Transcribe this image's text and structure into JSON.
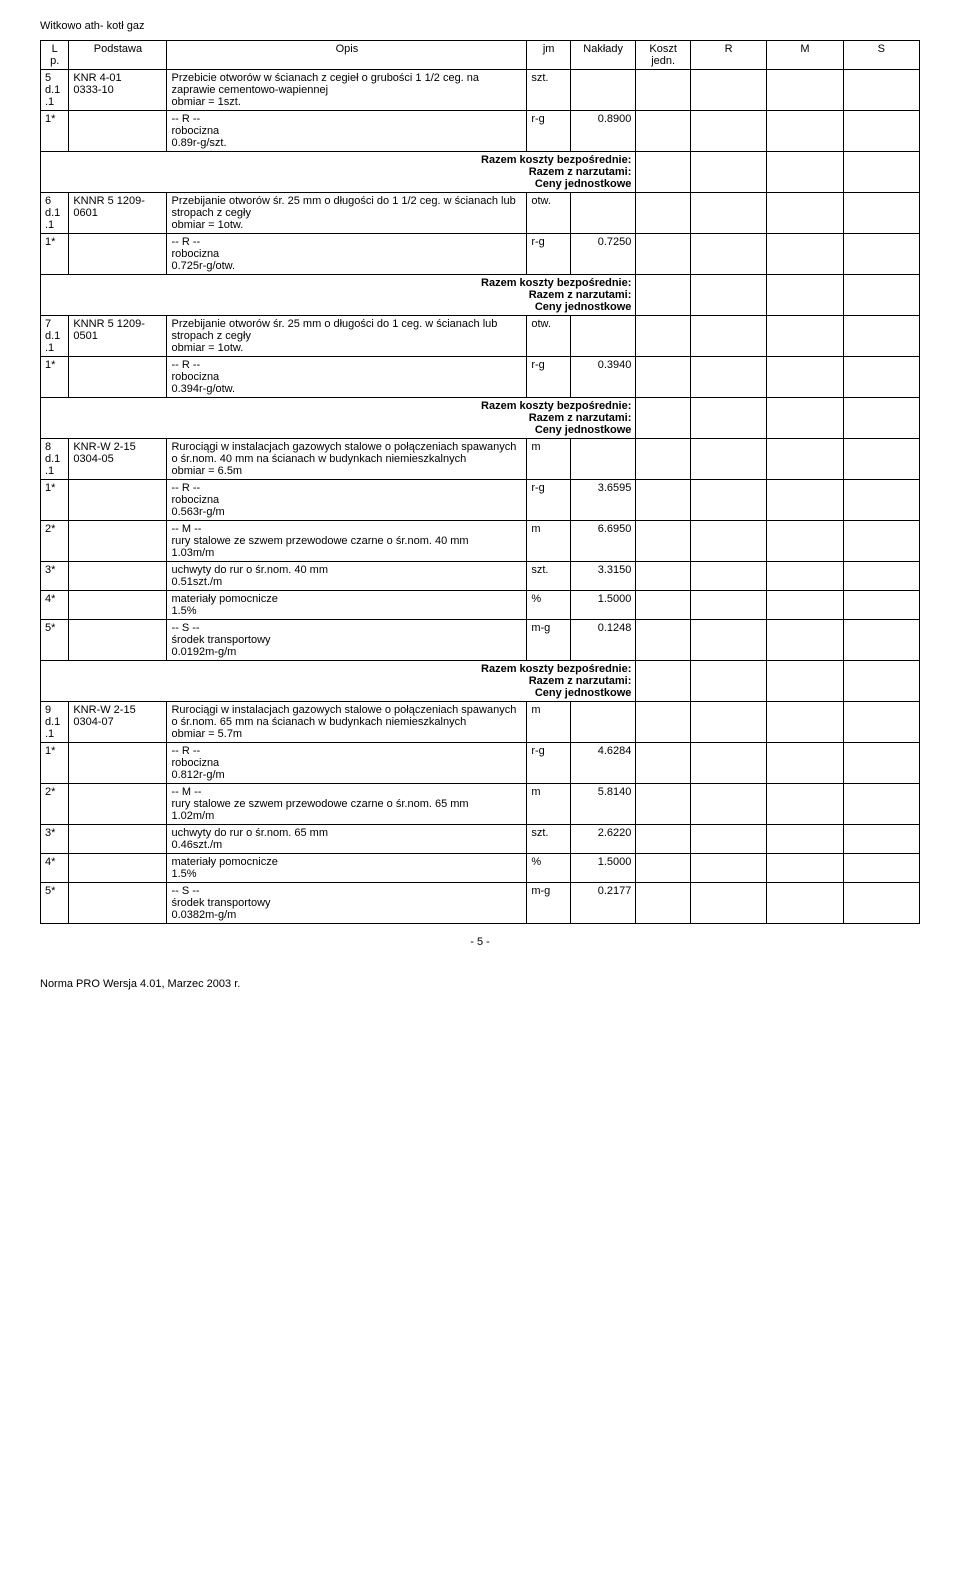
{
  "doc_title": "Witkowo ath- kotł gaz",
  "headers": {
    "lp": "L\np.",
    "podstawa": "Podstawa",
    "opis": "Opis",
    "jm": "jm",
    "naklady": "Nakłady",
    "koszt": "Koszt\njedn.",
    "r": "R",
    "m": "M",
    "s": "S"
  },
  "labels": {
    "rkb": "Razem koszty bezpośrednie:",
    "rzn": "Razem z narzutami:",
    "cj": "Ceny jednostkowe",
    "r_prefix": "-- R --",
    "m_prefix": "-- M --",
    "s_prefix": "-- S --"
  },
  "rows": [
    {
      "lp": "5\nd.1\n.1",
      "podstawa": "KNR 4-01\n0333-10",
      "opis": "Przebicie otworów w ścianach z cegieł o grubości 1 1/2 ceg. na zaprawie cementowo-wapiennej\nobmiar = 1szt.",
      "jm": "szt.",
      "sub": [
        {
          "type": "R",
          "lp": "1*",
          "opis": "robocizna\n0.89r-g/szt.",
          "jm": "r-g",
          "nak": "0.8900"
        }
      ]
    },
    {
      "lp": "6\nd.1\n.1",
      "podstawa": "KNNR 5 1209-\n0601",
      "opis": "Przebijanie otworów śr. 25 mm o długości do 1 1/2 ceg. w ścianach lub stropach z cegły\nobmiar = 1otw.",
      "jm": "otw.",
      "sub": [
        {
          "type": "R",
          "lp": "1*",
          "opis": "robocizna\n0.725r-g/otw.",
          "jm": "r-g",
          "nak": "0.7250"
        }
      ]
    },
    {
      "lp": "7\nd.1\n.1",
      "podstawa": "KNNR 5 1209-\n0501",
      "opis": "Przebijanie otworów śr. 25 mm o długości do 1 ceg. w ścianach lub stropach z cegły\nobmiar = 1otw.",
      "jm": "otw.",
      "sub": [
        {
          "type": "R",
          "lp": "1*",
          "opis": "robocizna\n0.394r-g/otw.",
          "jm": "r-g",
          "nak": "0.3940"
        }
      ]
    },
    {
      "lp": "8\nd.1\n.1",
      "podstawa": "KNR-W 2-15\n0304-05",
      "opis": "Rurociągi w instalacjach gazowych stalowe o połączeniach spawanych o śr.nom. 40 mm na ścianach w budynkach niemieszkalnych\nobmiar = 6.5m",
      "jm": "m",
      "sub": [
        {
          "type": "R",
          "lp": "1*",
          "opis": "robocizna\n0.563r-g/m",
          "jm": "r-g",
          "nak": "3.6595"
        },
        {
          "type": "M",
          "lp": "2*",
          "opis": "rury stalowe ze szwem przewodowe czarne o śr.nom. 40 mm\n1.03m/m",
          "jm": "m",
          "nak": "6.6950"
        },
        {
          "type": "Mcont",
          "lp": "3*",
          "opis": "uchwyty do rur o śr.nom. 40 mm\n0.51szt./m",
          "jm": "szt.",
          "nak": "3.3150"
        },
        {
          "type": "Mcont",
          "lp": "4*",
          "opis": "materiały pomocnicze\n1.5%",
          "jm": "%",
          "nak": "1.5000"
        },
        {
          "type": "S",
          "lp": "5*",
          "opis": "środek transportowy\n0.0192m-g/m",
          "jm": "m-g",
          "nak": "0.1248"
        }
      ]
    },
    {
      "lp": "9\nd.1\n.1",
      "podstawa": "KNR-W 2-15\n0304-07",
      "opis": "Rurociągi w instalacjach gazowych stalowe o połączeniach spawanych o śr.nom. 65 mm na ścianach w budynkach niemieszkalnych\nobmiar = 5.7m",
      "jm": "m",
      "sub": [
        {
          "type": "R",
          "lp": "1*",
          "opis": "robocizna\n0.812r-g/m",
          "jm": "r-g",
          "nak": "4.6284"
        },
        {
          "type": "M",
          "lp": "2*",
          "opis": "rury stalowe ze szwem przewodowe czarne o śr.nom. 65 mm\n1.02m/m",
          "jm": "m",
          "nak": "5.8140"
        },
        {
          "type": "Mcont",
          "lp": "3*",
          "opis": "uchwyty do rur o śr.nom. 65 mm\n0.46szt./m",
          "jm": "szt.",
          "nak": "2.6220"
        },
        {
          "type": "Mcont",
          "lp": "4*",
          "opis": "materiały pomocnicze\n1.5%",
          "jm": "%",
          "nak": "1.5000"
        },
        {
          "type": "S",
          "lp": "5*",
          "opis": "środek transportowy\n0.0382m-g/m",
          "jm": "m-g",
          "nak": "0.2177"
        }
      ],
      "no_summary": true
    }
  ],
  "page_num": "- 5 -",
  "footer": "Norma PRO Wersja 4.01, Marzec 2003 r."
}
